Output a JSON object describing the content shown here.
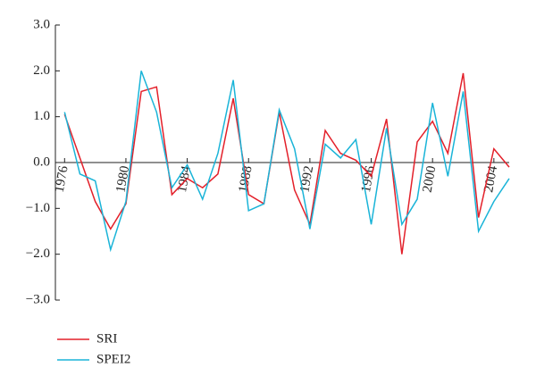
{
  "chart_data": {
    "type": "line",
    "x": [
      1976,
      1977,
      1978,
      1979,
      1980,
      1981,
      1982,
      1983,
      1984,
      1985,
      1986,
      1987,
      1988,
      1989,
      1990,
      1991,
      1992,
      1993,
      1994,
      1995,
      1996,
      1997,
      1998,
      1999,
      2000,
      2001,
      2002,
      2003,
      2004,
      2005
    ],
    "series": [
      {
        "name": "SRI",
        "color": "#e3202a",
        "values": [
          1.05,
          0.1,
          -0.85,
          -1.45,
          -0.9,
          1.55,
          1.65,
          -0.7,
          -0.35,
          -0.55,
          -0.25,
          1.4,
          -0.7,
          -0.9,
          1.1,
          -0.6,
          -1.35,
          0.7,
          0.2,
          0.05,
          -0.3,
          0.95,
          -2.0,
          0.45,
          0.9,
          0.2,
          1.95,
          -1.2,
          0.3,
          -0.1
        ]
      },
      {
        "name": "SPEI2",
        "color": "#1ab4d8",
        "values": [
          1.1,
          -0.25,
          -0.4,
          -1.9,
          -0.85,
          2.0,
          1.1,
          -0.55,
          -0.05,
          -0.8,
          0.2,
          1.8,
          -1.05,
          -0.9,
          1.15,
          0.3,
          -1.45,
          0.4,
          0.1,
          0.5,
          -1.35,
          0.75,
          -1.35,
          -0.8,
          1.3,
          -0.3,
          1.55,
          -1.5,
          -0.85,
          -0.35
        ]
      }
    ],
    "xlim": [
      1975.4,
      2005
    ],
    "xticks": [
      1976,
      1980,
      1984,
      1988,
      1992,
      1996,
      2000,
      2004
    ],
    "ylim": [
      -3,
      3
    ],
    "yticks": [
      {
        "value": 3,
        "label": "3.0"
      },
      {
        "value": 2,
        "label": "2.0"
      },
      {
        "value": 1,
        "label": "1.0"
      },
      {
        "value": 0,
        "label": "0.0"
      },
      {
        "value": -1,
        "label": "−1.0"
      },
      {
        "value": -2,
        "label": "−2.0"
      },
      {
        "value": -3,
        "label": "−3.0"
      }
    ],
    "legend": "bottom-left"
  }
}
